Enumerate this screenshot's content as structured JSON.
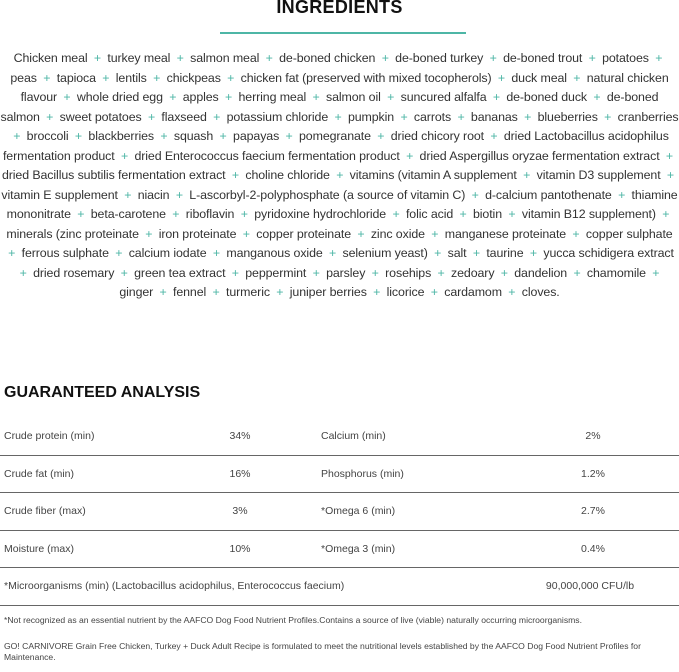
{
  "colors": {
    "accent": "#4db6a6"
  },
  "ingredients": {
    "title": "INGREDIENTS",
    "items": [
      "Chicken meal",
      "turkey meal",
      "salmon meal",
      "de-boned chicken",
      "de-boned turkey",
      "de-boned trout",
      "potatoes",
      "peas",
      "tapioca",
      "lentils",
      "chickpeas",
      "chicken fat (preserved with mixed tocopherols)",
      "duck meal",
      "natural chicken flavour",
      "whole dried egg",
      "apples",
      "herring meal",
      "salmon oil",
      "suncured alfalfa",
      "de-boned duck",
      "de-boned salmon",
      "sweet potatoes",
      "flaxseed",
      "potassium chloride",
      "pumpkin",
      "carrots",
      "bananas",
      "blueberries",
      "cranberries",
      "broccoli",
      "blackberries",
      "squash",
      "papayas",
      "pomegranate",
      "dried chicory root",
      "dried Lactobacillus acidophilus fermentation product",
      "dried Enterococcus faecium fermentation product",
      "dried Aspergillus oryzae fermentation extract",
      "dried Bacillus subtilis fermentation extract",
      "choline chloride",
      "vitamins (vitamin A supplement",
      "vitamin D3 supplement",
      "vitamin E supplement",
      "niacin",
      "L-ascorbyl-2-polyphosphate (a source of vitamin C)",
      "d-calcium pantothenate",
      "thiamine mononitrate",
      "beta-carotene",
      "riboflavin",
      "pyridoxine hydrochloride",
      "folic acid",
      "biotin",
      "vitamin B12 supplement)",
      "minerals (zinc proteinate",
      "iron proteinate",
      "copper proteinate",
      "zinc oxide",
      "manganese proteinate",
      "copper sulphate",
      "ferrous sulphate",
      "calcium iodate",
      "manganous oxide",
      "selenium yeast)",
      "salt",
      "taurine",
      "yucca schidigera extract",
      "dried rosemary",
      "green tea extract",
      "peppermint",
      "parsley",
      "rosehips",
      "zedoary",
      "dandelion",
      "chamomile",
      "ginger",
      "fennel",
      "turmeric",
      "juniper berries",
      "licorice",
      "cardamom",
      "cloves."
    ],
    "separator": "+"
  },
  "analysis": {
    "title": "GUARANTEED ANALYSIS",
    "rows": [
      {
        "label1": "Crude protein (min)",
        "value1": "34%",
        "label2": "Calcium (min)",
        "value2": "2%"
      },
      {
        "label1": "Crude fat (min)",
        "value1": "16%",
        "label2": "Phosphorus (min)",
        "value2": "1.2%"
      },
      {
        "label1": "Crude fiber (max)",
        "value1": "3%",
        "label2": "*Omega 6 (min)",
        "value2": "2.7%"
      },
      {
        "label1": "Moisture (max)",
        "value1": "10%",
        "label2": "*Omega 3 (min)",
        "value2": "0.4%"
      }
    ],
    "micro": {
      "label": "*Microorganisms (min) (Lactobacillus acidophilus, Enterococcus faecium)",
      "value": "90,000,000 CFU/lb"
    }
  },
  "footnote": "*Not recognized as an essential nutrient by the AAFCO Dog Food Nutrient Profiles.Contains a source of live (viable) naturally occurring microorganisms.",
  "statement": "GO! CARNIVORE Grain Free Chicken, Turkey + Duck Adult Recipe is formulated to meet the nutritional levels established by the AAFCO Dog Food Nutrient Profiles for Maintenance."
}
